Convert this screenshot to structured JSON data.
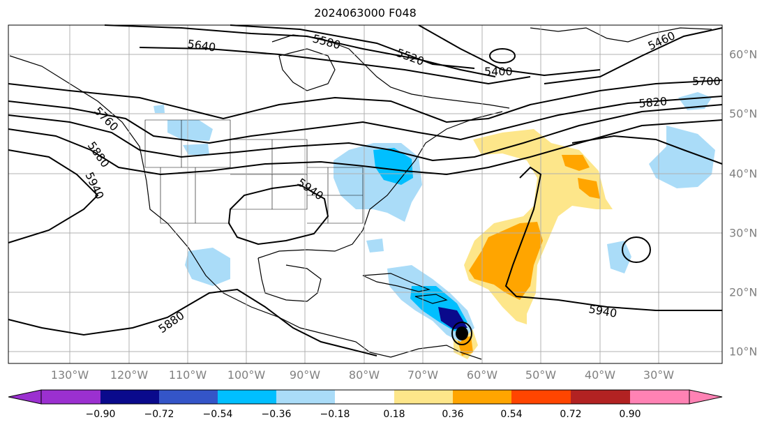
{
  "title": "2024063000 F048",
  "longitude_labels": [
    "130°W",
    "120°W",
    "110°W",
    "100°W",
    "90°W",
    "80°W",
    "70°W",
    "60°W",
    "50°W",
    "40°W",
    "30°W"
  ],
  "latitude_labels": [
    "60°N",
    "50°N",
    "40°N",
    "30°N",
    "20°N",
    "10°N"
  ],
  "contour_labels": [
    "5640",
    "5580",
    "5520",
    "5400",
    "5460",
    "5700",
    "5820",
    "5760",
    "5880",
    "5940",
    "5940",
    "5940",
    "5880"
  ],
  "colorbar": {
    "ticks": [
      "−0.90",
      "−0.72",
      "−0.54",
      "−0.36",
      "−0.18",
      "0.18",
      "0.36",
      "0.54",
      "0.72",
      "0.90"
    ],
    "colors": [
      "#9b30d0",
      "#0a0a8c",
      "#3455c8",
      "#00bfff",
      "#aadcf8",
      "#ffffff",
      "#fde68a",
      "#ffa500",
      "#ff4500",
      "#b22222",
      "#ff82b4"
    ]
  },
  "colors": {
    "light_blue": "#aadcf8",
    "mid_blue": "#00bfff",
    "royal_blue": "#3455c8",
    "navy": "#0a0a8c",
    "light_yellow": "#fde68a",
    "orange": "#ffa500",
    "red_orange": "#ff4500"
  }
}
